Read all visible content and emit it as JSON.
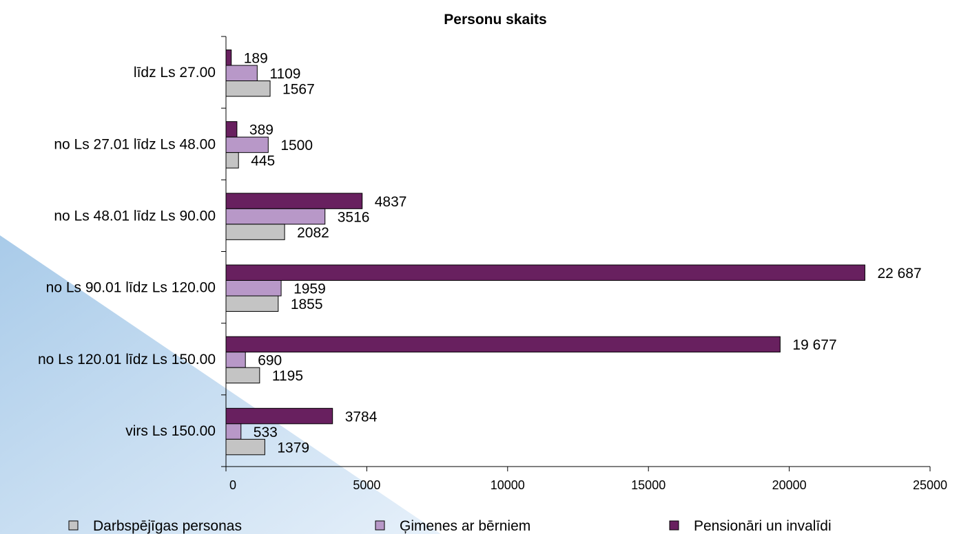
{
  "chart_data": {
    "type": "bar",
    "orientation": "horizontal",
    "title": "Personu skaits",
    "categories": [
      "līdz Ls 27.00",
      "no Ls 27.01 līdz Ls 48.00",
      "no Ls 48.01 līdz Ls 90.00",
      "no Ls 90.01 līdz Ls 120.00",
      "no Ls 120.01 līdz Ls 150.00",
      "virs Ls 150.00"
    ],
    "series": [
      {
        "name": "Pensionāri un invalīdi",
        "color": "#68205f",
        "values": [
          189,
          389,
          4837,
          22687,
          19677,
          3784
        ],
        "labels": [
          "189",
          "389",
          "4837",
          "22 687",
          "19 677",
          "3784"
        ]
      },
      {
        "name": "Ģimenes ar bērniem",
        "color": "#b898c8",
        "values": [
          1109,
          1500,
          3516,
          1959,
          690,
          533
        ],
        "labels": [
          "1109",
          "1500",
          "3516",
          "1959",
          "690",
          "533"
        ]
      },
      {
        "name": "Darbspējīgas personas",
        "color": "#c4c4c4",
        "values": [
          1567,
          445,
          2082,
          1855,
          1195,
          1379
        ],
        "labels": [
          "1567",
          "445",
          "2082",
          "1855",
          "1195",
          "1379"
        ]
      }
    ],
    "xlim": [
      0,
      25000
    ],
    "xticks": [
      0,
      5000,
      10000,
      15000,
      20000,
      25000
    ],
    "xtick_labels": [
      "0",
      "5000",
      "10000",
      "15000",
      "20000",
      "25000"
    ],
    "xlabel": "",
    "ylabel": "",
    "grid": false,
    "legend": {
      "position": "bottom",
      "order": [
        "Darbspējīgas personas",
        "Ģimenes ar bērniem",
        "Pensionāri un invalīdi"
      ]
    }
  }
}
